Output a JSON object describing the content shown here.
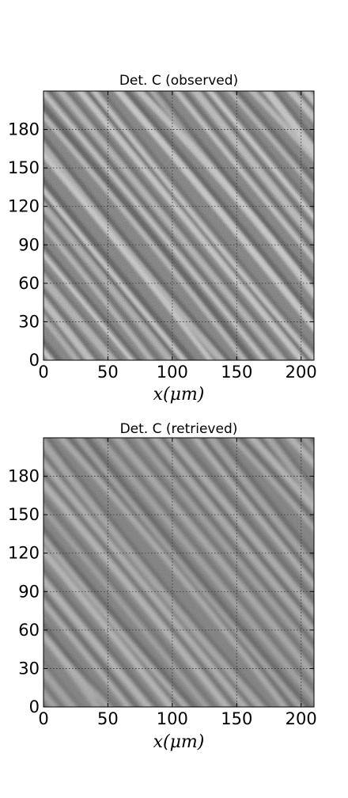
{
  "chart_data": [
    {
      "type": "heatmap",
      "title": "Det. C (observed)",
      "xlabel": "x(μm)",
      "ylabel": "",
      "xlim": [
        0,
        210
      ],
      "ylim": [
        0,
        210
      ],
      "xticks": [
        "0",
        "50",
        "100",
        "150",
        "200"
      ],
      "yticks": [
        "0",
        "30",
        "60",
        "90",
        "120",
        "150",
        "180"
      ],
      "grid": true,
      "colormap": "gray",
      "pattern": "diagonal stripes descending left to right, high contrast, noisy"
    },
    {
      "type": "heatmap",
      "title": "Det. C (retrieved)",
      "xlabel": "x(μm)",
      "ylabel": "",
      "xlim": [
        0,
        210
      ],
      "ylim": [
        0,
        210
      ],
      "xticks": [
        "0",
        "50",
        "100",
        "150",
        "200"
      ],
      "yticks": [
        "0",
        "30",
        "60",
        "90",
        "120",
        "150",
        "180"
      ],
      "grid": true,
      "colormap": "gray",
      "pattern": "diagonal stripes descending left to right, smoother, embossed"
    }
  ],
  "colors": {
    "grid": "#333333",
    "frame": "#000000",
    "background": "#ffffff"
  }
}
